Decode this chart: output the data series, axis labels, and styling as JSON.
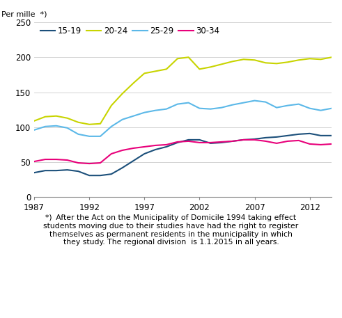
{
  "years": [
    1987,
    1988,
    1989,
    1990,
    1991,
    1992,
    1993,
    1994,
    1995,
    1996,
    1997,
    1998,
    1999,
    2000,
    2001,
    2002,
    2003,
    2004,
    2005,
    2006,
    2007,
    2008,
    2009,
    2010,
    2011,
    2012,
    2013,
    2014
  ],
  "series": {
    "15-19": [
      35,
      38,
      38,
      39,
      37,
      31,
      31,
      33,
      42,
      52,
      62,
      68,
      72,
      78,
      82,
      82,
      77,
      78,
      80,
      82,
      83,
      85,
      86,
      88,
      90,
      91,
      88,
      88
    ],
    "20-24": [
      109,
      115,
      116,
      113,
      107,
      104,
      105,
      131,
      148,
      163,
      177,
      180,
      183,
      198,
      200,
      183,
      186,
      190,
      194,
      197,
      196,
      192,
      191,
      193,
      196,
      198,
      197,
      200
    ],
    "25-29": [
      96,
      101,
      102,
      99,
      90,
      87,
      87,
      101,
      111,
      116,
      121,
      124,
      126,
      133,
      135,
      127,
      126,
      128,
      132,
      135,
      138,
      136,
      128,
      131,
      133,
      127,
      124,
      127
    ],
    "30-34": [
      51,
      54,
      54,
      53,
      49,
      48,
      49,
      62,
      67,
      70,
      72,
      74,
      75,
      79,
      80,
      78,
      78,
      79,
      80,
      82,
      82,
      80,
      77,
      80,
      81,
      76,
      75,
      76
    ]
  },
  "colors": {
    "15-19": "#1b4f7a",
    "20-24": "#c8d400",
    "25-29": "#5bb8e8",
    "30-34": "#e8007a"
  },
  "ylabel": "Per mille  *)",
  "ylim": [
    0,
    250
  ],
  "yticks": [
    0,
    50,
    100,
    150,
    200,
    250
  ],
  "xticks": [
    1987,
    1992,
    1997,
    2002,
    2007,
    2012
  ],
  "footnote_lines": [
    "*)  After the Act on the Municipality of Domicile 1994 taking effect",
    "students moving due to their studies have had the right to register",
    "themselves as permanent residents in the municipality in which",
    "they study. The regional division  is 1.1.2015 in all years."
  ],
  "legend_order": [
    "15-19",
    "20-24",
    "25-29",
    "30-34"
  ],
  "grid_color": "#cccccc"
}
